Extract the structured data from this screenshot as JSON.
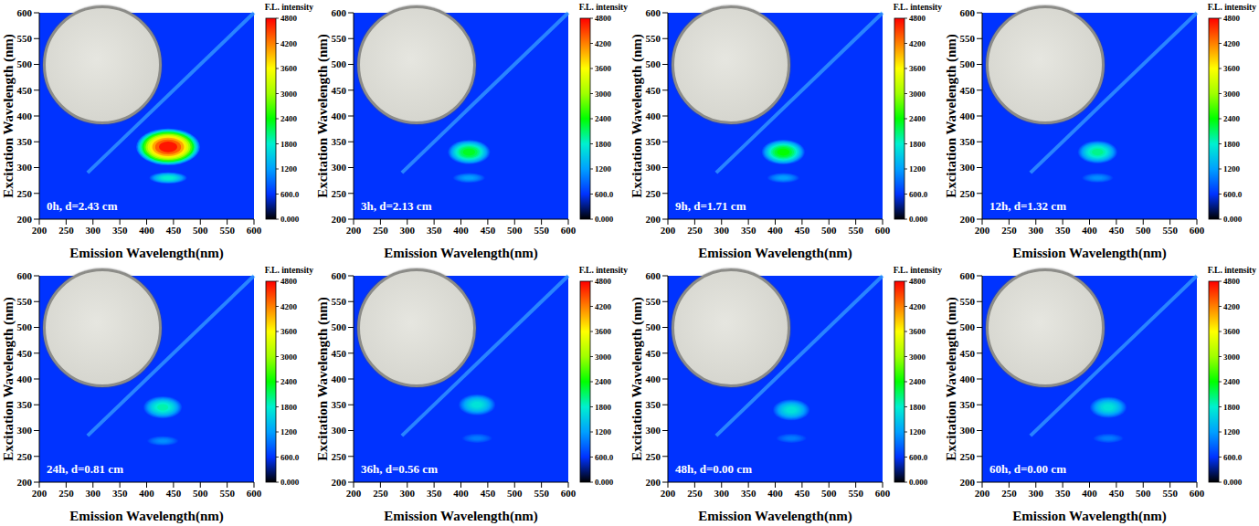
{
  "chart_data": [
    {
      "type": "contour",
      "annotation": "0h, d=2.43 cm",
      "x_label": "Emission Wavelength(nm)",
      "y_label": "Excitation Wavelength (nm)",
      "xlim": [
        200,
        600
      ],
      "ylim": [
        200,
        600
      ],
      "xticks": [
        200,
        250,
        300,
        350,
        400,
        450,
        500,
        550,
        600
      ],
      "yticks": [
        200,
        250,
        300,
        350,
        400,
        450,
        500,
        550,
        600
      ],
      "grid": false,
      "scatter_line": {
        "em": [
          290,
          600
        ],
        "ex": [
          290,
          600
        ]
      },
      "peaks": [
        {
          "em": 440,
          "ex": 340,
          "intensity": 4700
        },
        {
          "em": 440,
          "ex": 280,
          "intensity": 1800
        }
      ],
      "colorbar": {
        "title": "F.L. intensity",
        "range": [
          0,
          4800
        ],
        "ticks": [
          {
            "value": 0,
            "label": "0.000"
          },
          {
            "value": 600,
            "label": "600.0"
          },
          1200,
          1800,
          2400,
          3000,
          3600,
          4200,
          4800
        ],
        "colors": [
          "#000000",
          "#0033ff",
          "#00a0ff",
          "#00f0d0",
          "#00ff00",
          "#a0ff00",
          "#ffff00",
          "#ff8000",
          "#ff0000"
        ]
      }
    },
    {
      "type": "contour",
      "annotation": "3h, d=2.13 cm",
      "x_label": "Emission Wavelength(nm)",
      "y_label": "Excitation Wavelength (nm)",
      "xlim": [
        200,
        600
      ],
      "ylim": [
        200,
        600
      ],
      "xticks": [
        200,
        250,
        300,
        350,
        400,
        450,
        500,
        550,
        600
      ],
      "yticks": [
        200,
        250,
        300,
        350,
        400,
        450,
        500,
        550,
        600
      ],
      "grid": false,
      "scatter_line": {
        "em": [
          290,
          600
        ],
        "ex": [
          290,
          600
        ]
      },
      "peaks": [
        {
          "em": 415,
          "ex": 330,
          "intensity": 2300
        },
        {
          "em": 415,
          "ex": 280,
          "intensity": 1200
        }
      ],
      "colorbar": {
        "title": "F.L. intensity",
        "range": [
          0,
          4800
        ],
        "ticks": [
          {
            "value": 0,
            "label": "0.000"
          },
          {
            "value": 600,
            "label": "600.0"
          },
          1200,
          1800,
          2400,
          3000,
          3600,
          4200,
          4800
        ],
        "colors": [
          "#000000",
          "#0033ff",
          "#00a0ff",
          "#00f0d0",
          "#00ff00",
          "#a0ff00",
          "#ffff00",
          "#ff8000",
          "#ff0000"
        ]
      }
    },
    {
      "type": "contour",
      "annotation": "9h, d=1.71 cm",
      "x_label": "Emission Wavelength(nm)",
      "y_label": "Excitation Wavelength (nm)",
      "xlim": [
        200,
        600
      ],
      "ylim": [
        200,
        600
      ],
      "xticks": [
        200,
        250,
        300,
        350,
        400,
        450,
        500,
        550,
        600
      ],
      "yticks": [
        200,
        250,
        300,
        350,
        400,
        450,
        500,
        550,
        600
      ],
      "grid": false,
      "scatter_line": {
        "em": [
          290,
          600
        ],
        "ex": [
          290,
          600
        ]
      },
      "peaks": [
        {
          "em": 415,
          "ex": 330,
          "intensity": 2400
        },
        {
          "em": 415,
          "ex": 280,
          "intensity": 1200
        }
      ],
      "colorbar": {
        "title": "F.L. intensity",
        "range": [
          0,
          4800
        ],
        "ticks": [
          {
            "value": 0,
            "label": "0.000"
          },
          {
            "value": 600,
            "label": "600.0"
          },
          1200,
          1800,
          2400,
          3000,
          3600,
          4200,
          4800
        ],
        "colors": [
          "#000000",
          "#0033ff",
          "#00a0ff",
          "#00f0d0",
          "#00ff00",
          "#a0ff00",
          "#ffff00",
          "#ff8000",
          "#ff0000"
        ]
      }
    },
    {
      "type": "contour",
      "annotation": "12h, d=1.32 cm",
      "x_label": "Emission Wavelength(nm)",
      "y_label": "Excitation Wavelength (nm)",
      "xlim": [
        200,
        600
      ],
      "ylim": [
        200,
        600
      ],
      "xticks": [
        200,
        250,
        300,
        350,
        400,
        450,
        500,
        550,
        600
      ],
      "yticks": [
        200,
        250,
        300,
        350,
        400,
        450,
        500,
        550,
        600
      ],
      "grid": false,
      "scatter_line": {
        "em": [
          290,
          600
        ],
        "ex": [
          290,
          600
        ]
      },
      "peaks": [
        {
          "em": 415,
          "ex": 330,
          "intensity": 2000
        },
        {
          "em": 415,
          "ex": 280,
          "intensity": 1100
        }
      ],
      "colorbar": {
        "title": "F.L. intensity",
        "range": [
          0,
          4800
        ],
        "ticks": [
          {
            "value": 0,
            "label": "0.000"
          },
          {
            "value": 600,
            "label": "600.0"
          },
          1200,
          1800,
          2400,
          3000,
          3600,
          4200,
          4800
        ],
        "colors": [
          "#000000",
          "#0033ff",
          "#00a0ff",
          "#00f0d0",
          "#00ff00",
          "#a0ff00",
          "#ffff00",
          "#ff8000",
          "#ff0000"
        ]
      }
    },
    {
      "type": "contour",
      "annotation": "24h, d=0.81 cm",
      "x_label": "Emission Wavelength(nm)",
      "y_label": "Excitation Wavelength (nm)",
      "xlim": [
        200,
        600
      ],
      "ylim": [
        200,
        600
      ],
      "xticks": [
        200,
        250,
        300,
        350,
        400,
        450,
        500,
        550,
        600
      ],
      "yticks": [
        200,
        250,
        300,
        350,
        400,
        450,
        500,
        550,
        600
      ],
      "grid": false,
      "scatter_line": {
        "em": [
          290,
          600
        ],
        "ex": [
          290,
          600
        ]
      },
      "peaks": [
        {
          "em": 430,
          "ex": 345,
          "intensity": 1900
        },
        {
          "em": 430,
          "ex": 280,
          "intensity": 1100
        }
      ],
      "colorbar": {
        "title": "F.L. intensity",
        "range": [
          0,
          4800
        ],
        "ticks": [
          {
            "value": 0,
            "label": "0.000"
          },
          {
            "value": 600,
            "label": "600.0"
          },
          1200,
          1800,
          2400,
          3000,
          3600,
          4200,
          4800
        ],
        "colors": [
          "#000000",
          "#0033ff",
          "#00a0ff",
          "#00f0d0",
          "#00ff00",
          "#a0ff00",
          "#ffff00",
          "#ff8000",
          "#ff0000"
        ]
      }
    },
    {
      "type": "contour",
      "annotation": "36h, d=0.56 cm",
      "x_label": "Emission Wavelength(nm)",
      "y_label": "Excitation Wavelength (nm)",
      "xlim": [
        200,
        600
      ],
      "ylim": [
        200,
        600
      ],
      "xticks": [
        200,
        250,
        300,
        350,
        400,
        450,
        500,
        550,
        600
      ],
      "yticks": [
        200,
        250,
        300,
        350,
        400,
        450,
        500,
        550,
        600
      ],
      "grid": false,
      "scatter_line": {
        "em": [
          290,
          600
        ],
        "ex": [
          290,
          600
        ]
      },
      "peaks": [
        {
          "em": 430,
          "ex": 350,
          "intensity": 1700
        },
        {
          "em": 430,
          "ex": 285,
          "intensity": 1000
        }
      ],
      "colorbar": {
        "title": "F.L. intensity",
        "range": [
          0,
          4800
        ],
        "ticks": [
          {
            "value": 0,
            "label": "0.000"
          },
          {
            "value": 600,
            "label": "600.0"
          },
          1200,
          1800,
          2400,
          3000,
          3600,
          4200,
          4800
        ],
        "colors": [
          "#000000",
          "#0033ff",
          "#00a0ff",
          "#00f0d0",
          "#00ff00",
          "#a0ff00",
          "#ffff00",
          "#ff8000",
          "#ff0000"
        ]
      }
    },
    {
      "type": "contour",
      "annotation": "48h, d=0.00 cm",
      "x_label": "Emission Wavelength(nm)",
      "y_label": "Excitation Wavelength (nm)",
      "xlim": [
        200,
        600
      ],
      "ylim": [
        200,
        600
      ],
      "xticks": [
        200,
        250,
        300,
        350,
        400,
        450,
        500,
        550,
        600
      ],
      "yticks": [
        200,
        250,
        300,
        350,
        400,
        450,
        500,
        550,
        600
      ],
      "grid": false,
      "scatter_line": {
        "em": [
          290,
          600
        ],
        "ex": [
          290,
          600
        ]
      },
      "peaks": [
        {
          "em": 430,
          "ex": 340,
          "intensity": 1700
        },
        {
          "em": 430,
          "ex": 285,
          "intensity": 1000
        }
      ],
      "colorbar": {
        "title": "F.L. intensity",
        "range": [
          0,
          4800
        ],
        "ticks": [
          {
            "value": 0,
            "label": "0.000"
          },
          {
            "value": 600,
            "label": "600.0"
          },
          1200,
          1800,
          2400,
          3000,
          3600,
          4200,
          4800
        ],
        "colors": [
          "#000000",
          "#0033ff",
          "#00a0ff",
          "#00f0d0",
          "#00ff00",
          "#a0ff00",
          "#ffff00",
          "#ff8000",
          "#ff0000"
        ]
      }
    },
    {
      "type": "contour",
      "annotation": "60h, d=0.00 cm",
      "x_label": "Emission Wavelength(nm)",
      "y_label": "Excitation Wavelength (nm)",
      "xlim": [
        200,
        600
      ],
      "ylim": [
        200,
        600
      ],
      "xticks": [
        200,
        250,
        300,
        350,
        400,
        450,
        500,
        550,
        600
      ],
      "yticks": [
        200,
        250,
        300,
        350,
        400,
        450,
        500,
        550,
        600
      ],
      "grid": false,
      "scatter_line": {
        "em": [
          290,
          600
        ],
        "ex": [
          290,
          600
        ]
      },
      "peaks": [
        {
          "em": 435,
          "ex": 345,
          "intensity": 1700
        },
        {
          "em": 435,
          "ex": 285,
          "intensity": 1000
        }
      ],
      "colorbar": {
        "title": "F.L. intensity",
        "range": [
          0,
          4800
        ],
        "ticks": [
          {
            "value": 0,
            "label": "0.000"
          },
          {
            "value": 600,
            "label": "600.0"
          },
          1200,
          1800,
          2400,
          3000,
          3600,
          4200,
          4800
        ],
        "colors": [
          "#000000",
          "#0033ff",
          "#00a0ff",
          "#00f0d0",
          "#00ff00",
          "#a0ff00",
          "#ffff00",
          "#ff8000",
          "#ff0000"
        ]
      }
    }
  ]
}
